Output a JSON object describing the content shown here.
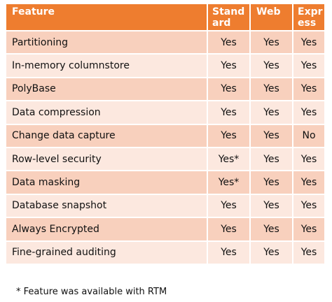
{
  "table": {
    "headers": {
      "feature": "Feature",
      "standard": "Stand\nard",
      "web": "Web",
      "express": "Expr\ness"
    },
    "rows": [
      {
        "feature": "Partitioning",
        "standard": "Yes",
        "web": "Yes",
        "express": "Yes"
      },
      {
        "feature": "In-memory columnstore",
        "standard": "Yes",
        "web": "Yes",
        "express": "Yes"
      },
      {
        "feature": "PolyBase",
        "standard": "Yes",
        "web": "Yes",
        "express": "Yes"
      },
      {
        "feature": "Data compression",
        "standard": "Yes",
        "web": "Yes",
        "express": "Yes"
      },
      {
        "feature": "Change data capture",
        "standard": "Yes",
        "web": "Yes",
        "express": "No"
      },
      {
        "feature": "Row-level security",
        "standard": "Yes*",
        "web": "Yes",
        "express": "Yes"
      },
      {
        "feature": "Data masking",
        "standard": "Yes*",
        "web": "Yes",
        "express": "Yes"
      },
      {
        "feature": "Database snapshot",
        "standard": "Yes",
        "web": "Yes",
        "express": "Yes"
      },
      {
        "feature": "Always Encrypted",
        "standard": "Yes",
        "web": "Yes",
        "express": "Yes"
      },
      {
        "feature": "Fine-grained auditing",
        "standard": "Yes",
        "web": "Yes",
        "express": "Yes"
      }
    ]
  },
  "footnote": "* Feature was available with RTM",
  "colors": {
    "header_bg": "#ee7d2f",
    "row_odd_bg": "#f8d0bd",
    "row_even_bg": "#fce8df"
  }
}
